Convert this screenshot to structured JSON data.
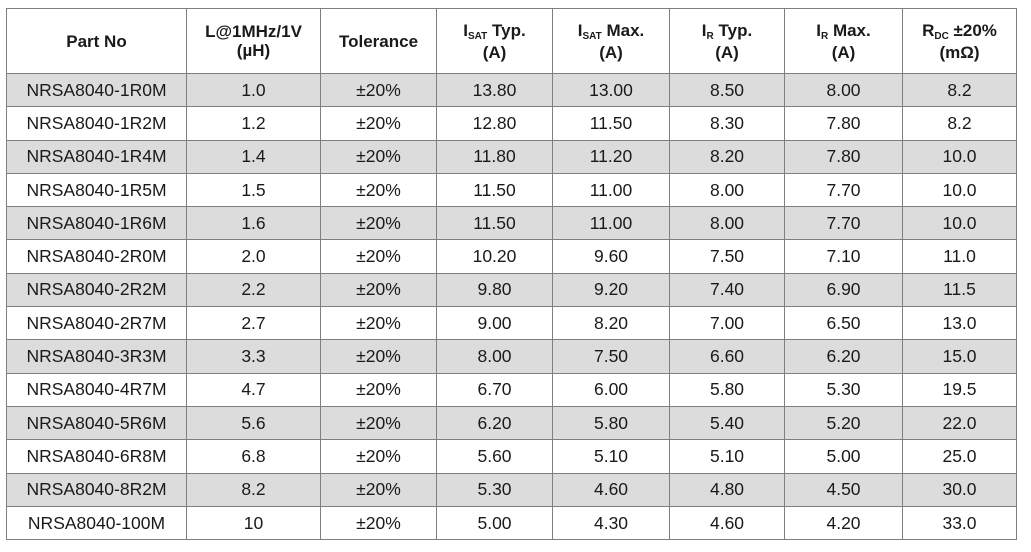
{
  "headers": {
    "part_no": "Part No",
    "inductance_line1": "L@1MHz/1V",
    "inductance_line2": "(µH)",
    "tolerance": "Tolerance",
    "isat_typ_main": "I",
    "isat_typ_sub": "SAT",
    "isat_typ_suffix": " Typ.",
    "isat_typ_unit": "(A)",
    "isat_max_main": "I",
    "isat_max_sub": "SAT",
    "isat_max_suffix": " Max.",
    "isat_max_unit": "(A)",
    "ir_typ_main": "I",
    "ir_typ_sub": "R",
    "ir_typ_suffix": " Typ.",
    "ir_typ_unit": "(A)",
    "ir_max_main": "I",
    "ir_max_sub": "R",
    "ir_max_suffix": " Max.",
    "ir_max_unit": "(A)",
    "rdc_main": "R",
    "rdc_sub": "DC",
    "rdc_suffix": " ±20%",
    "rdc_unit": "(mΩ)"
  },
  "rows": [
    [
      "NRSA8040-1R0M",
      "1.0",
      "±20%",
      "13.80",
      "13.00",
      "8.50",
      "8.00",
      "8.2"
    ],
    [
      "NRSA8040-1R2M",
      "1.2",
      "±20%",
      "12.80",
      "11.50",
      "8.30",
      "7.80",
      "8.2"
    ],
    [
      "NRSA8040-1R4M",
      "1.4",
      "±20%",
      "11.80",
      "11.20",
      "8.20",
      "7.80",
      "10.0"
    ],
    [
      "NRSA8040-1R5M",
      "1.5",
      "±20%",
      "11.50",
      "11.00",
      "8.00",
      "7.70",
      "10.0"
    ],
    [
      "NRSA8040-1R6M",
      "1.6",
      "±20%",
      "11.50",
      "11.00",
      "8.00",
      "7.70",
      "10.0"
    ],
    [
      "NRSA8040-2R0M",
      "2.0",
      "±20%",
      "10.20",
      "9.60",
      "7.50",
      "7.10",
      "11.0"
    ],
    [
      "NRSA8040-2R2M",
      "2.2",
      "±20%",
      "9.80",
      "9.20",
      "7.40",
      "6.90",
      "11.5"
    ],
    [
      "NRSA8040-2R7M",
      "2.7",
      "±20%",
      "9.00",
      "8.20",
      "7.00",
      "6.50",
      "13.0"
    ],
    [
      "NRSA8040-3R3M",
      "3.3",
      "±20%",
      "8.00",
      "7.50",
      "6.60",
      "6.20",
      "15.0"
    ],
    [
      "NRSA8040-4R7M",
      "4.7",
      "±20%",
      "6.70",
      "6.00",
      "5.80",
      "5.30",
      "19.5"
    ],
    [
      "NRSA8040-5R6M",
      "5.6",
      "±20%",
      "6.20",
      "5.80",
      "5.40",
      "5.20",
      "22.0"
    ],
    [
      "NRSA8040-6R8M",
      "6.8",
      "±20%",
      "5.60",
      "5.10",
      "5.10",
      "5.00",
      "25.0"
    ],
    [
      "NRSA8040-8R2M",
      "8.2",
      "±20%",
      "5.30",
      "4.60",
      "4.80",
      "4.50",
      "30.0"
    ],
    [
      "NRSA8040-100M",
      "10",
      "±20%",
      "5.00",
      "4.30",
      "4.60",
      "4.20",
      "33.0"
    ]
  ],
  "colors": {
    "shaded_row": "#dcdcdc",
    "plain_row": "#ffffff",
    "border": "#7f7f7f",
    "text": "#1a1a1a"
  }
}
